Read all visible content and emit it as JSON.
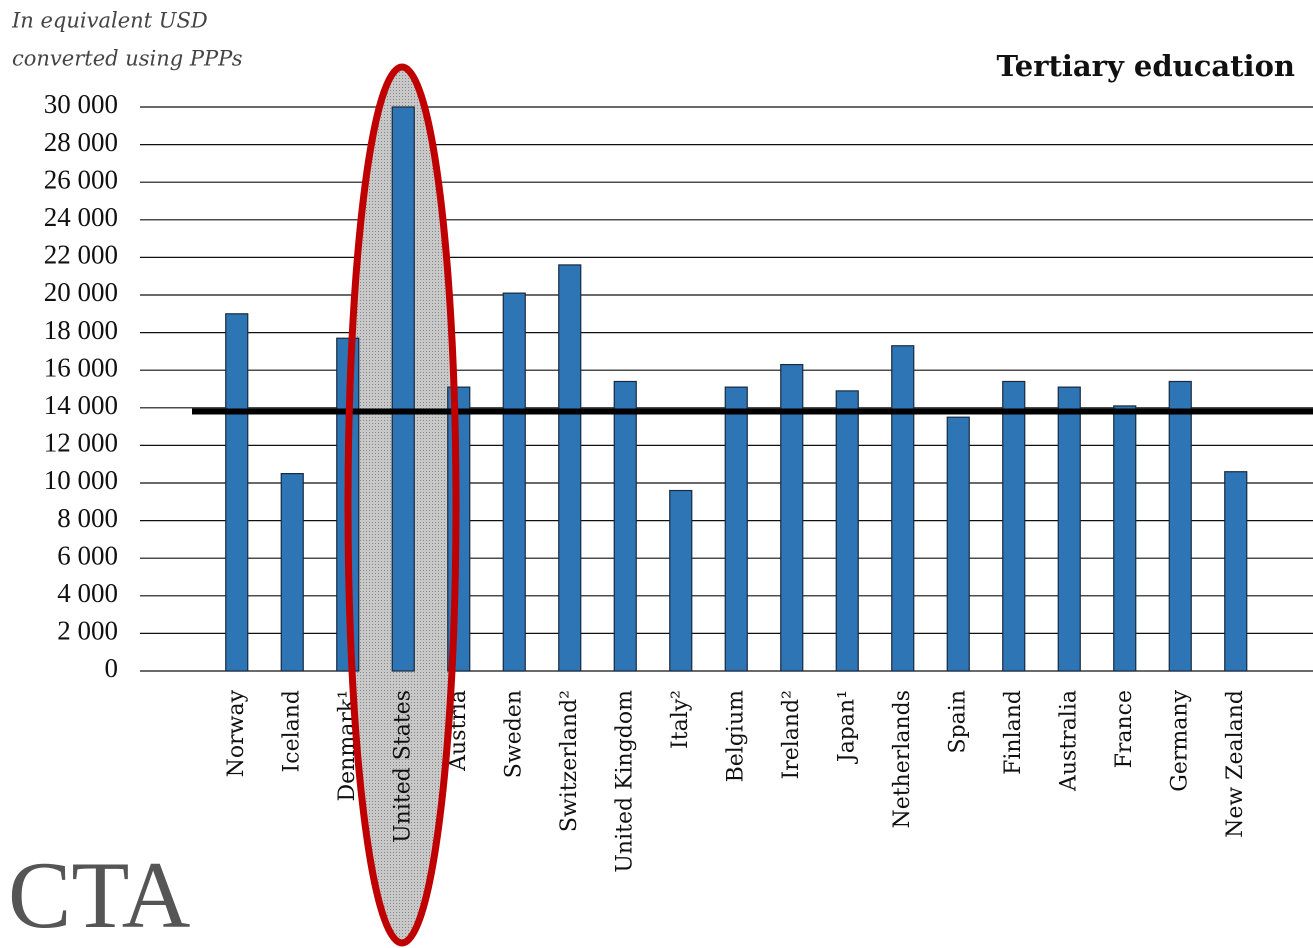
{
  "chart_data": {
    "type": "bar",
    "title": "Tertiary education",
    "ylabel_lines": [
      "In equivalent USD",
      "converted using PPPs"
    ],
    "watermark": "CTA",
    "categories": [
      "Norway",
      "Iceland",
      "Denmark¹",
      "United States",
      "Austria",
      "Sweden",
      "Switzerland²",
      "United Kingdom",
      "Italy²",
      "Belgium",
      "Ireland²",
      "Japan¹",
      "Netherlands",
      "Spain",
      "Finland",
      "Australia",
      "France",
      "Germany",
      "New Zealand"
    ],
    "values": [
      19000,
      10500,
      17700,
      30000,
      15100,
      20100,
      21600,
      15400,
      9600,
      15100,
      16300,
      14900,
      17300,
      13500,
      15400,
      15100,
      14100,
      15400,
      10600
    ],
    "color": "#2e75b6",
    "reference_line": 13800,
    "ylim": [
      0,
      30000
    ],
    "yticks": [
      0,
      {
        "value": 2000,
        "label": "2 000"
      },
      {
        "value": 4000,
        "label": "4 000"
      },
      {
        "value": 6000,
        "label": "6 000"
      },
      {
        "value": 8000,
        "label": "8 000"
      },
      {
        "value": 10000,
        "label": "10 000"
      },
      {
        "value": 12000,
        "label": "12 000"
      },
      {
        "value": 14000,
        "label": "14 000"
      },
      {
        "value": 16000,
        "label": "16 000"
      },
      {
        "value": 18000,
        "label": "18 000"
      },
      {
        "value": 20000,
        "label": "20 000"
      },
      {
        "value": 22000,
        "label": "22 000"
      },
      {
        "value": 24000,
        "label": "24 000"
      },
      {
        "value": 26000,
        "label": "26 000"
      },
      {
        "value": 28000,
        "label": "28 000"
      },
      {
        "value": 30000,
        "label": "30 000"
      }
    ],
    "grid": true
  }
}
